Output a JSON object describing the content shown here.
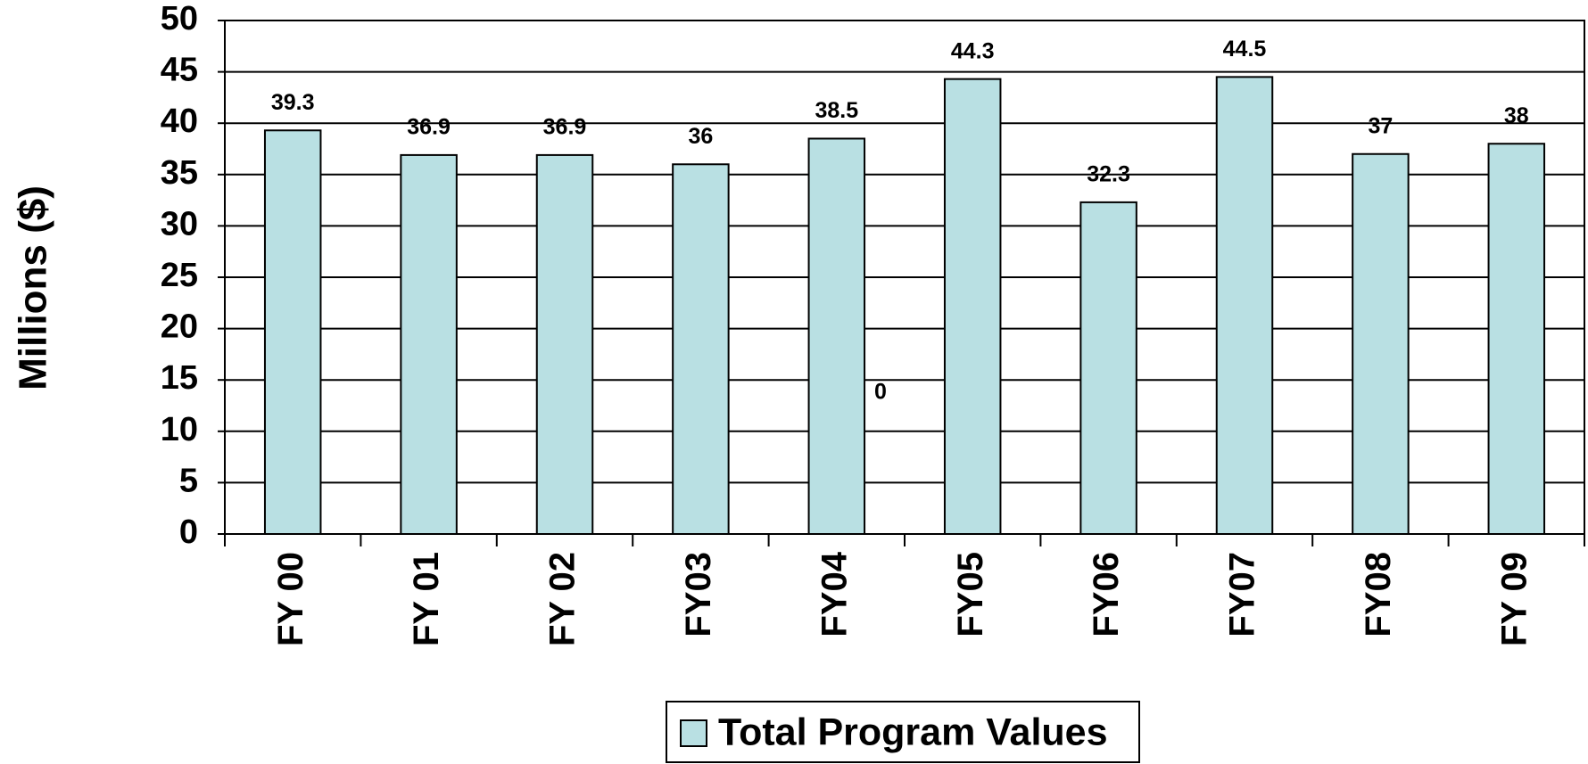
{
  "chart_data": {
    "type": "bar",
    "y_axis_label": "Millions ($)",
    "categories": [
      "FY 00",
      "FY 01",
      "FY 02",
      "FY03",
      "FY04",
      "FY05",
      "FY06",
      "FY07",
      "FY08",
      "FY 09"
    ],
    "series": [
      {
        "name": "Total Program Values",
        "color": "#b9e0e3",
        "values": [
          39.3,
          36.9,
          36.9,
          36,
          38.5,
          44.3,
          32.3,
          44.5,
          37,
          38
        ]
      }
    ],
    "annotations": [
      "0"
    ],
    "ylim": [
      0,
      50
    ],
    "yticks": [
      0,
      5,
      10,
      15,
      20,
      25,
      30,
      35,
      40,
      45,
      50
    ],
    "grid": true,
    "legend": "bottom"
  }
}
